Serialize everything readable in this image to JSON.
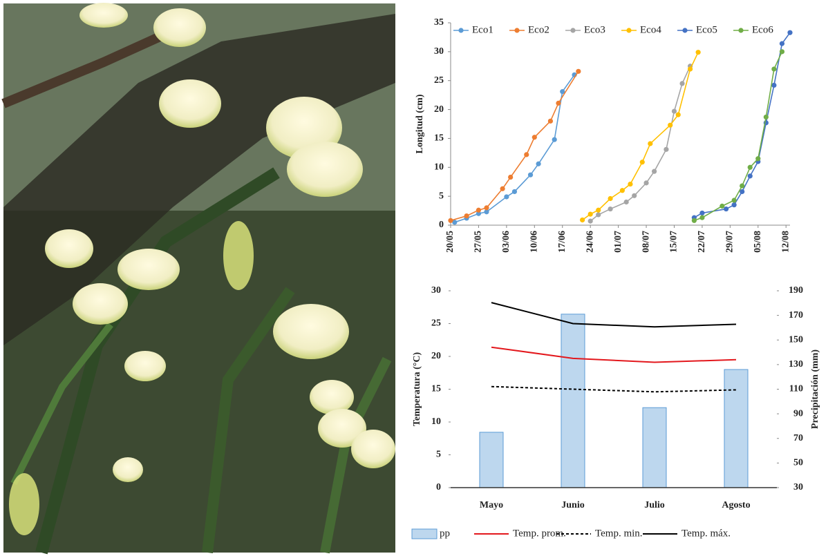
{
  "chart_data": [
    {
      "type": "line",
      "y_label": "Longitud (cm)",
      "xlim": [
        "20/05",
        "13/08"
      ],
      "xticks": [
        "20/05",
        "27/05",
        "03/06",
        "10/06",
        "17/06",
        "24/06",
        "01/07",
        "08/07",
        "15/07",
        "22/07",
        "29/07",
        "05/08",
        "12/08"
      ],
      "ylim": [
        0,
        35
      ],
      "yticks": [
        0,
        5,
        10,
        15,
        20,
        25,
        30,
        35
      ],
      "legend": "top",
      "series": [
        {
          "name": "Eco1",
          "color": "#5b9bd5",
          "x": [
            "21/05",
            "24/05",
            "27/05",
            "29/05",
            "03/06",
            "05/06",
            "09/06",
            "11/06",
            "15/06",
            "17/06",
            "20/06"
          ],
          "values": [
            0.5,
            1.2,
            2.0,
            2.3,
            4.9,
            5.8,
            8.7,
            10.6,
            14.8,
            23.1,
            26.0
          ]
        },
        {
          "name": "Eco2",
          "color": "#ed7d31",
          "x": [
            "20/05",
            "24/05",
            "27/05",
            "29/05",
            "02/06",
            "04/06",
            "08/06",
            "10/06",
            "14/06",
            "16/06",
            "21/06"
          ],
          "values": [
            0.8,
            1.6,
            2.6,
            3.0,
            6.3,
            8.3,
            12.2,
            15.2,
            18.0,
            21.1,
            26.6
          ]
        },
        {
          "name": "Eco3",
          "color": "#a5a5a5",
          "x": [
            "24/06",
            "26/06",
            "29/06",
            "03/07",
            "05/07",
            "08/07",
            "10/07",
            "13/07",
            "15/07",
            "17/07",
            "19/07"
          ],
          "values": [
            0.7,
            1.8,
            2.8,
            4.0,
            5.1,
            7.3,
            9.3,
            13.1,
            19.7,
            24.5,
            27.5
          ]
        },
        {
          "name": "Eco4",
          "color": "#ffc000",
          "x": [
            "22/06",
            "24/06",
            "26/06",
            "29/06",
            "02/07",
            "04/07",
            "07/07",
            "09/07",
            "14/07",
            "16/07",
            "19/07",
            "21/07"
          ],
          "values": [
            0.9,
            1.9,
            2.6,
            4.6,
            6.0,
            7.1,
            10.9,
            14.1,
            17.3,
            19.1,
            27.0,
            29.9
          ]
        },
        {
          "name": "Eco5",
          "color": "#4472c4",
          "x": [
            "20/07",
            "22/07",
            "28/07",
            "30/07",
            "01/08",
            "03/08",
            "05/08",
            "07/08",
            "09/08",
            "11/08",
            "13/08"
          ],
          "values": [
            1.3,
            2.1,
            2.8,
            3.5,
            5.8,
            8.5,
            11.0,
            17.7,
            24.2,
            31.4,
            33.3
          ]
        },
        {
          "name": "Eco6",
          "color": "#70ad47",
          "x": [
            "20/07",
            "22/07",
            "27/07",
            "30/07",
            "01/08",
            "03/08",
            "05/08",
            "07/08",
            "09/08",
            "11/08"
          ],
          "values": [
            0.8,
            1.3,
            3.3,
            4.3,
            6.8,
            10.0,
            11.5,
            18.7,
            27.0,
            30.0
          ]
        }
      ]
    },
    {
      "type": "combo",
      "y_label": "Temperatura (°C)",
      "y2_label": "Precipitación (mm)",
      "categories": [
        "Mayo",
        "Junio",
        "Julio",
        "Agosto"
      ],
      "ylim": [
        0,
        30
      ],
      "yticks": [
        0,
        5,
        10,
        15,
        20,
        25,
        30
      ],
      "y2lim": [
        30,
        190
      ],
      "y2ticks": [
        30,
        50,
        70,
        90,
        110,
        130,
        150,
        170,
        190
      ],
      "legend": "bottom",
      "series": [
        {
          "name": "pp",
          "type": "bar",
          "axis": "y2",
          "color": "#bdd7ee",
          "values": [
            75,
            171,
            95,
            126
          ]
        },
        {
          "name": "Temp. prom.",
          "type": "line",
          "color": "#e3171c",
          "values": [
            21.4,
            19.7,
            19.1,
            19.5
          ]
        },
        {
          "name": "Temp. min.",
          "type": "line",
          "dashed": true,
          "color": "#000000",
          "values": [
            15.4,
            15.0,
            14.6,
            14.9
          ]
        },
        {
          "name": "Temp. máx.",
          "type": "line",
          "color": "#000000",
          "values": [
            28.2,
            25.0,
            24.5,
            24.9
          ]
        }
      ]
    }
  ]
}
